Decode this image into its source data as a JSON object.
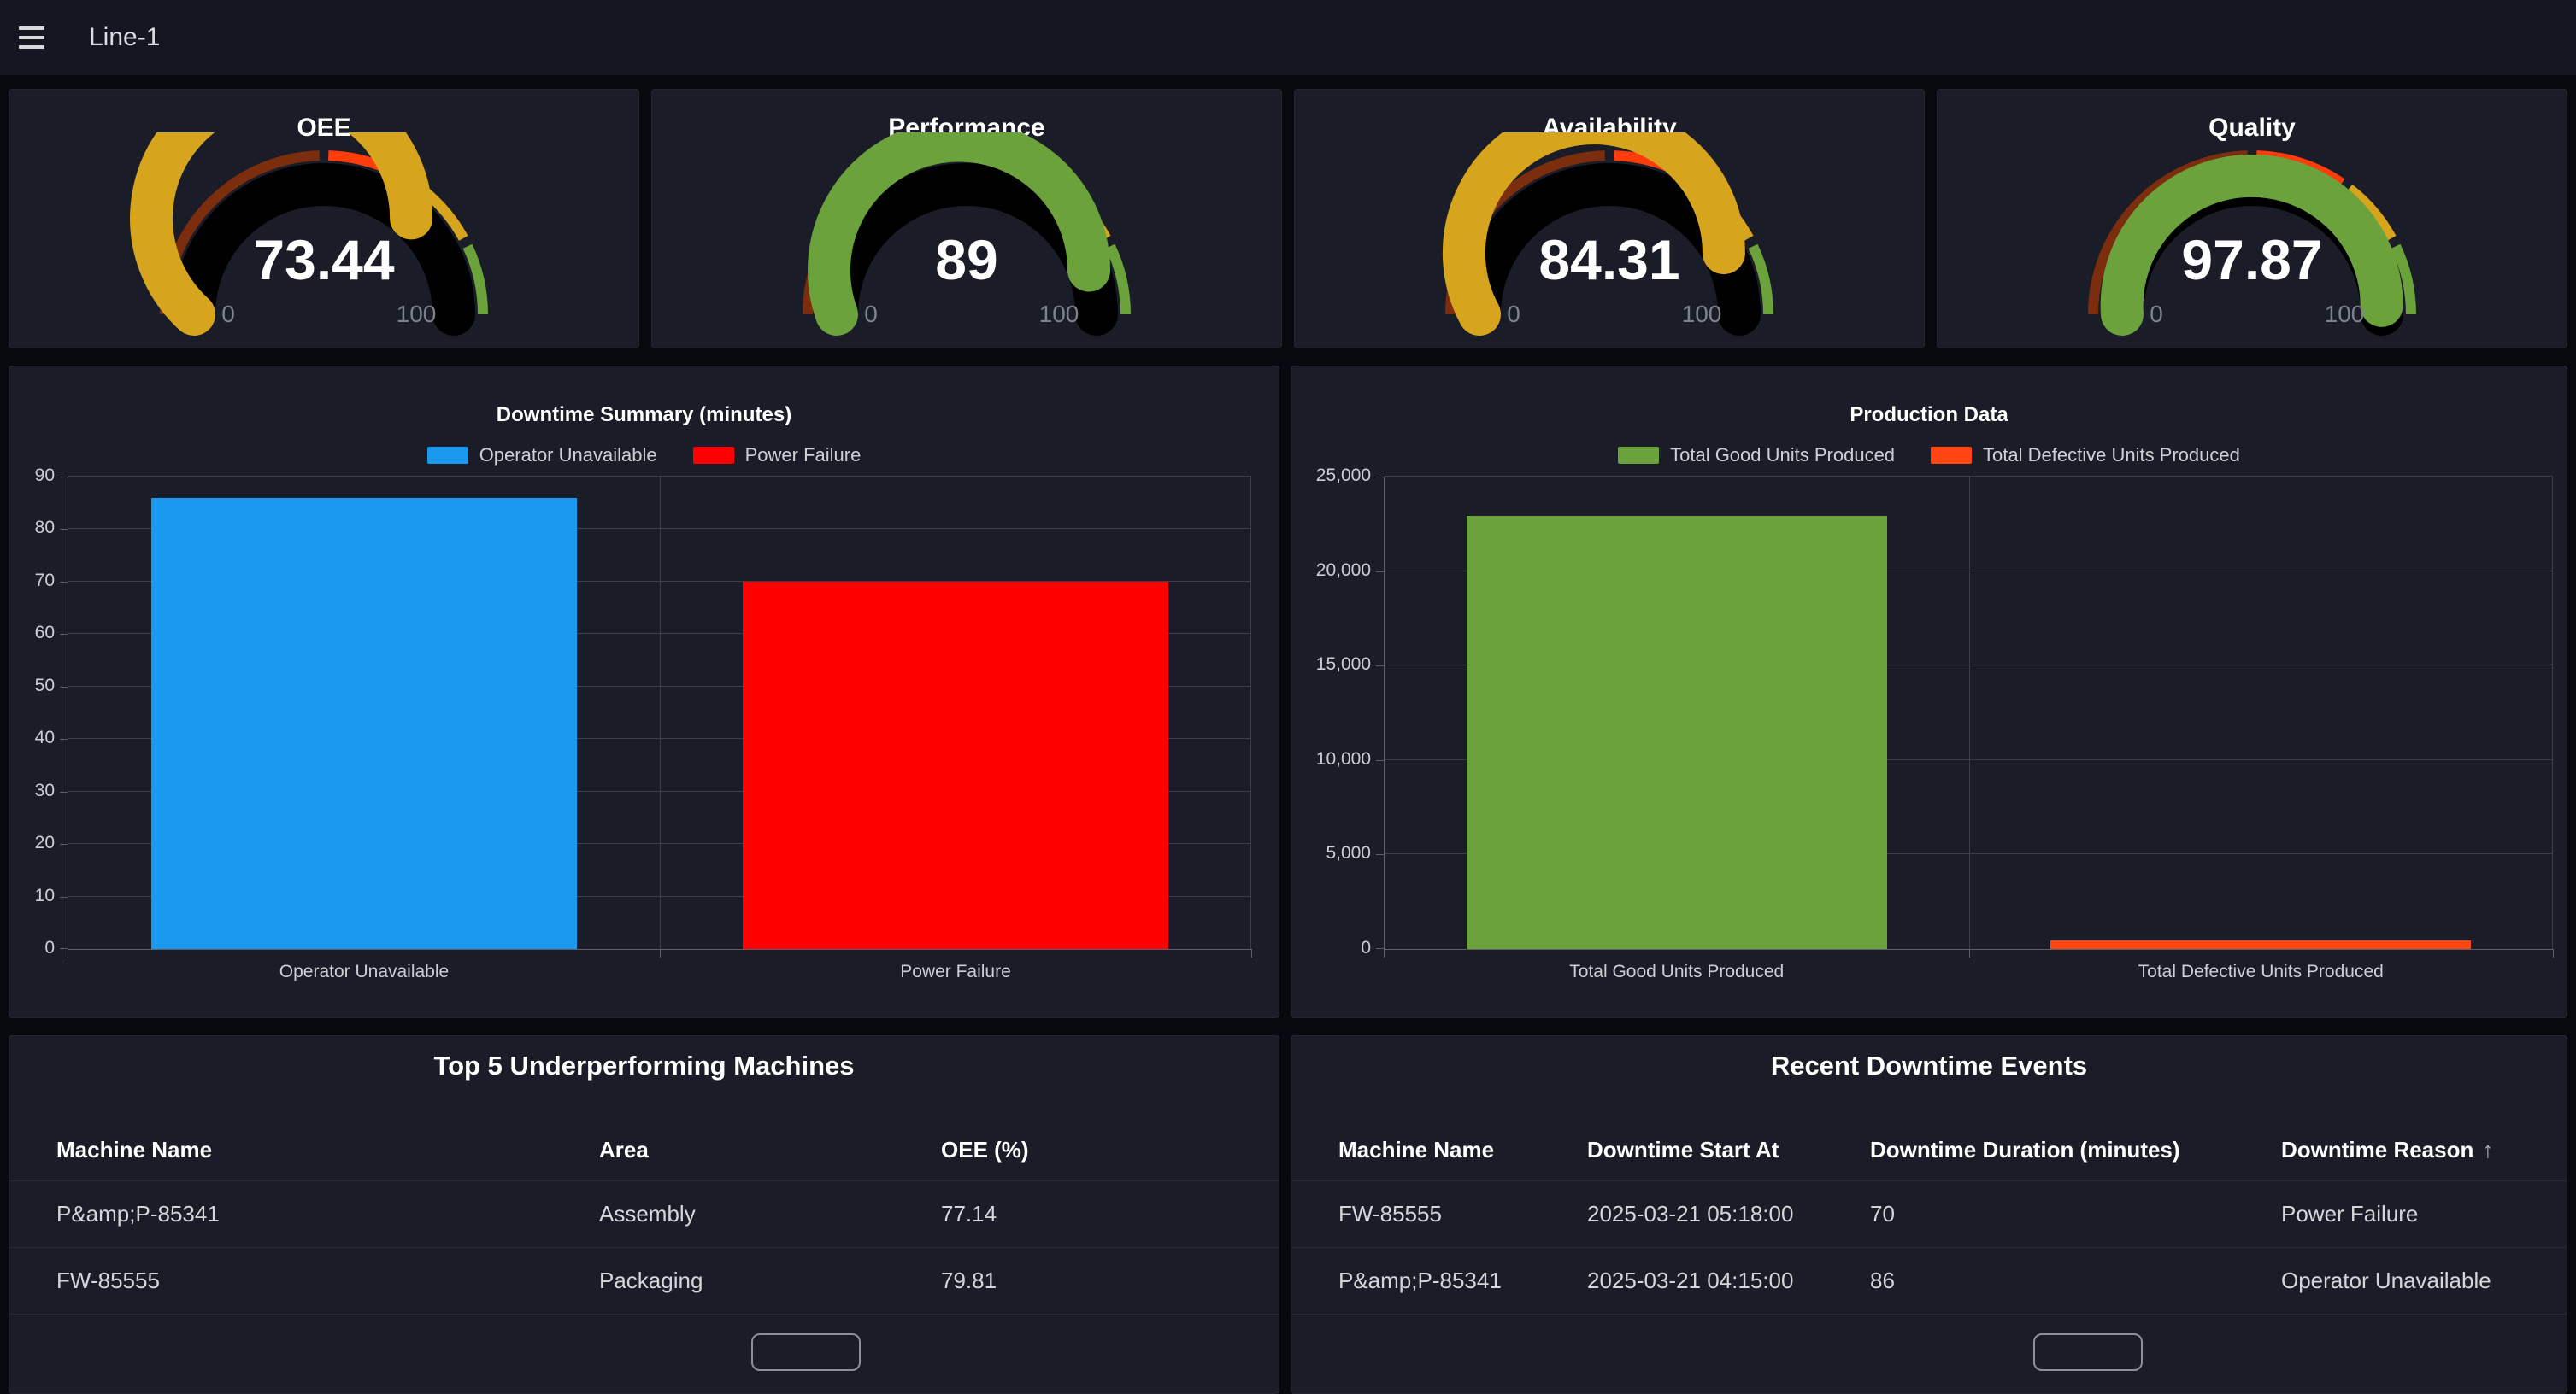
{
  "header": {
    "title": "Line-1"
  },
  "gauges": [
    {
      "title": "OEE",
      "display": "73.44",
      "value": 73.44,
      "min": 0,
      "max": 100,
      "min_label": "0",
      "max_label": "100"
    },
    {
      "title": "Performance",
      "display": "89",
      "value": 89,
      "min": 0,
      "max": 100,
      "min_label": "0",
      "max_label": "100"
    },
    {
      "title": "Availability",
      "display": "84.31",
      "value": 84.31,
      "min": 0,
      "max": 100,
      "min_label": "0",
      "max_label": "100"
    },
    {
      "title": "Quality",
      "display": "97.87",
      "value": 97.87,
      "min": 0,
      "max": 100,
      "min_label": "0",
      "max_label": "100"
    }
  ],
  "gauge_thresholds": {
    "steps": [
      {
        "from": 0,
        "to": 50,
        "color": "#7c2d0e"
      },
      {
        "from": 50,
        "to": 70,
        "color": "#ff3c0c"
      },
      {
        "from": 70,
        "to": 85,
        "color": "#d6a41d"
      },
      {
        "from": 85,
        "to": 100,
        "color": "#6ba23c"
      }
    ],
    "track_color": "#000000",
    "value_text_color": "#ffffff",
    "minmax_label_color": "#7f838d"
  },
  "chart_data": [
    {
      "type": "bar",
      "title": "Downtime Summary (minutes)",
      "categories": [
        "Operator Unavailable",
        "Power Failure"
      ],
      "values": [
        86,
        70
      ],
      "colors": [
        "#199af0",
        "#ff0000"
      ],
      "legend": [
        "Operator Unavailable",
        "Power Failure"
      ],
      "legend_position": "top",
      "xlabel": "",
      "ylabel": "",
      "ylim": [
        0,
        90
      ],
      "ytick_step": 10,
      "grid": true
    },
    {
      "type": "bar",
      "title": "Production Data",
      "categories": [
        "Total Good Units Produced",
        "Total Defective Units Produced"
      ],
      "values": [
        22900,
        450
      ],
      "colors": [
        "#6ba23c",
        "#ff4612"
      ],
      "legend": [
        "Total Good Units Produced",
        "Total Defective Units Produced"
      ],
      "legend_position": "top",
      "xlabel": "",
      "ylabel": "",
      "ylim": [
        0,
        25000
      ],
      "ytick_step": 5000,
      "grid": true
    }
  ],
  "tables": [
    {
      "title": "Top 5 Underperforming Machines",
      "columns": [
        "Machine Name",
        "Area",
        "OEE (%)"
      ],
      "rows": [
        [
          "P&amp;P-85341",
          "Assembly",
          "77.14"
        ],
        [
          "FW-85555",
          "Packaging",
          "79.81"
        ]
      ],
      "pager_visible": true
    },
    {
      "title": "Recent Downtime Events",
      "columns": [
        "Machine Name",
        "Downtime Start At",
        "Downtime Duration (minutes)",
        "Downtime Reason"
      ],
      "sort": {
        "column": "Downtime Reason",
        "direction": "asc",
        "icon_glyph": "↑"
      },
      "rows": [
        [
          "FW-85555",
          "2025-03-21 05:18:00",
          "70",
          "Power Failure"
        ],
        [
          "P&amp;P-85341",
          "2025-03-21 04:15:00",
          "86",
          "Operator Unavailable"
        ]
      ],
      "pager_visible": true
    }
  ]
}
